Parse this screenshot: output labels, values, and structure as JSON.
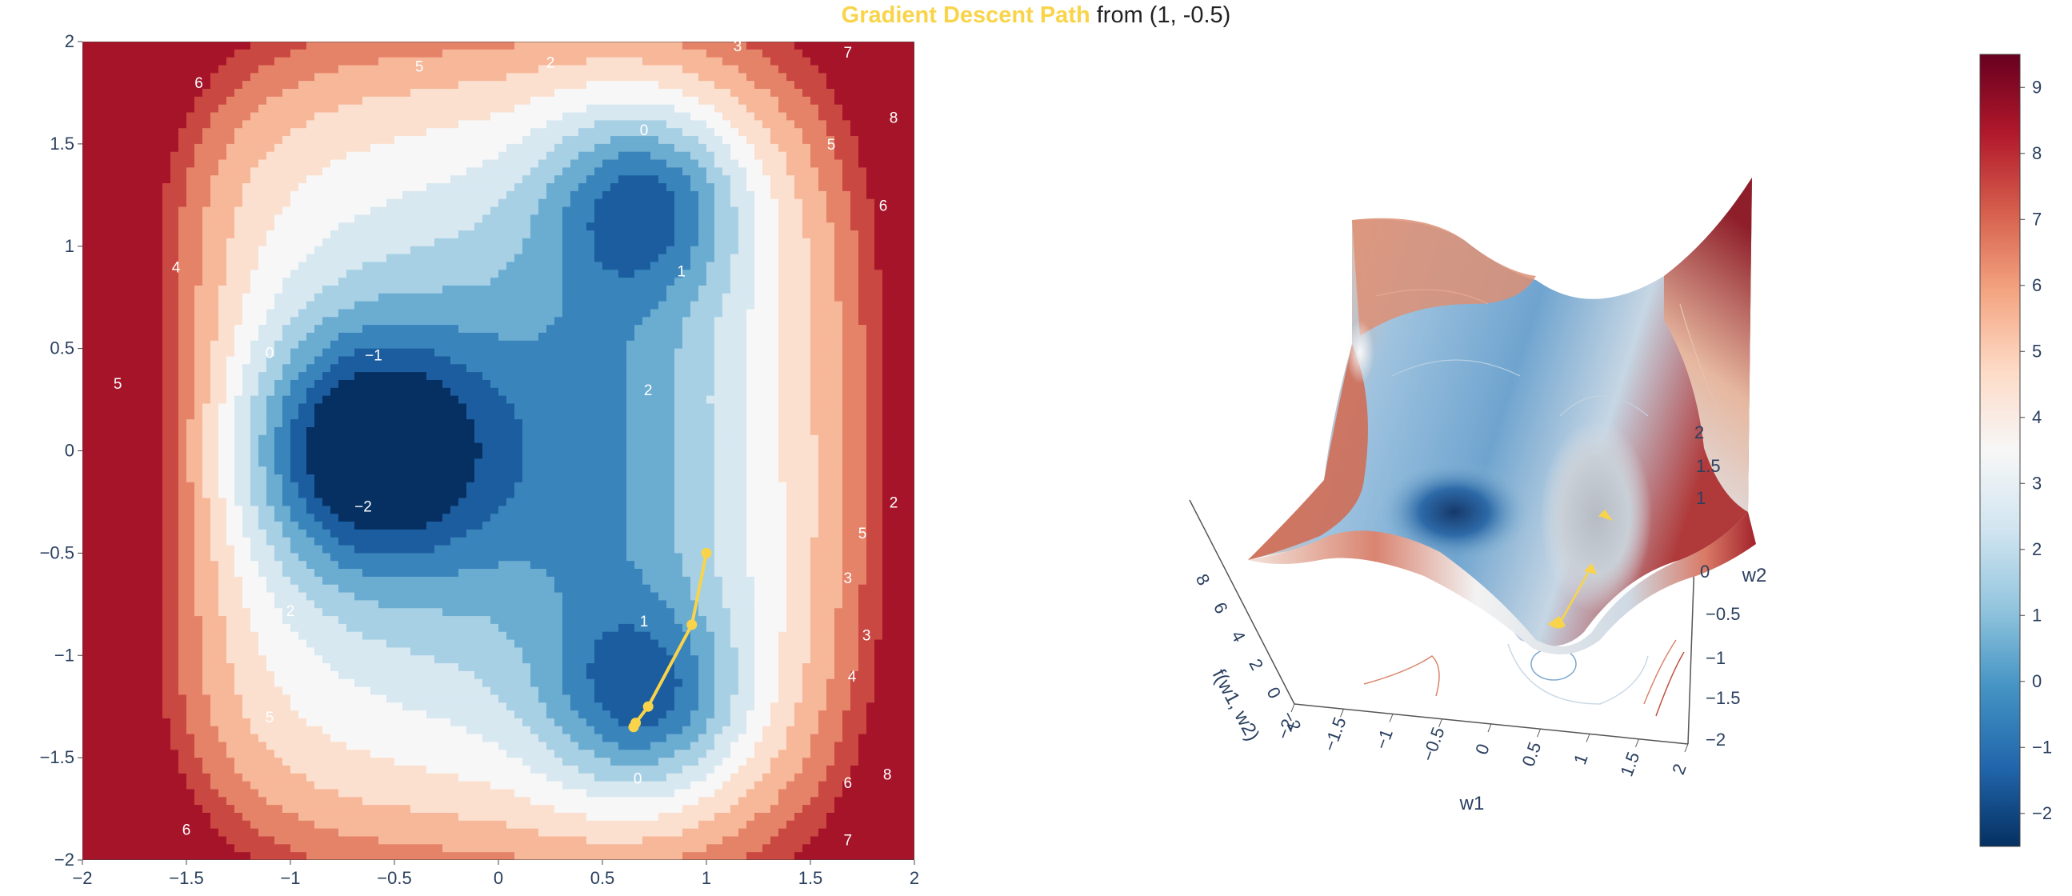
{
  "title": {
    "highlight": "Gradient Descent Path",
    "rest": " from (1, -0.5)",
    "highlight_color": "#f9d44a"
  },
  "colors": {
    "path": "#f9d44a",
    "colorscale": [
      "#053061",
      "#2166ac",
      "#4393c3",
      "#92c5de",
      "#d1e5f0",
      "#f7f7f7",
      "#fddbc7",
      "#f4a582",
      "#d6604d",
      "#b2182b",
      "#67001f"
    ]
  },
  "chart_data": [
    {
      "type": "contour",
      "function": "f(w1, w2)",
      "xlim": [
        -2,
        2
      ],
      "ylim": [
        -2,
        2
      ],
      "x_ticks": [
        "−2",
        "−1.5",
        "−1",
        "−0.5",
        "0",
        "0.5",
        "1",
        "1.5",
        "2"
      ],
      "y_ticks": [
        "2",
        "1.5",
        "1",
        "0.5",
        "0",
        "−0.5",
        "−1",
        "−1.5",
        "−2"
      ],
      "contour_levels": [
        -2,
        -1,
        0,
        1,
        2,
        3,
        4,
        5,
        6,
        7,
        8
      ],
      "contour_labels": [
        "−2",
        "−1",
        "0",
        "0",
        "0",
        "1",
        "1",
        "2",
        "2",
        "2",
        "2",
        "3",
        "3",
        "3",
        "4",
        "4",
        "5",
        "5",
        "5",
        "5",
        "5",
        "6",
        "6",
        "6",
        "6",
        "7",
        "7",
        "8",
        "8"
      ],
      "path": {
        "w1": [
          1.0,
          0.93,
          0.72,
          0.66,
          0.65
        ],
        "w2": [
          -0.5,
          -0.85,
          -1.25,
          -1.33,
          -1.35
        ]
      }
    },
    {
      "type": "surface",
      "xlabel": "w1",
      "ylabel": "w2",
      "zlabel": "f(w1, w2)",
      "x_ticks": [
        "−2",
        "−1.5",
        "−1",
        "−0.5",
        "0",
        "0.5",
        "1",
        "1.5",
        "2"
      ],
      "y_ticks": [
        "−2",
        "−1.5",
        "−1",
        "−0.5",
        "0",
        "1",
        "1.5",
        "2"
      ],
      "z_ticks": [
        "−2",
        "0",
        "2",
        "4",
        "6",
        "8"
      ],
      "colorbar": {
        "range": [
          -2.5,
          9.5
        ],
        "ticks": [
          "−2",
          "−1",
          "0",
          "1",
          "2",
          "3",
          "4",
          "5",
          "6",
          "7",
          "8",
          "9"
        ],
        "tick_values": [
          -2,
          -1,
          0,
          1,
          2,
          3,
          4,
          5,
          6,
          7,
          8,
          9
        ]
      }
    }
  ]
}
